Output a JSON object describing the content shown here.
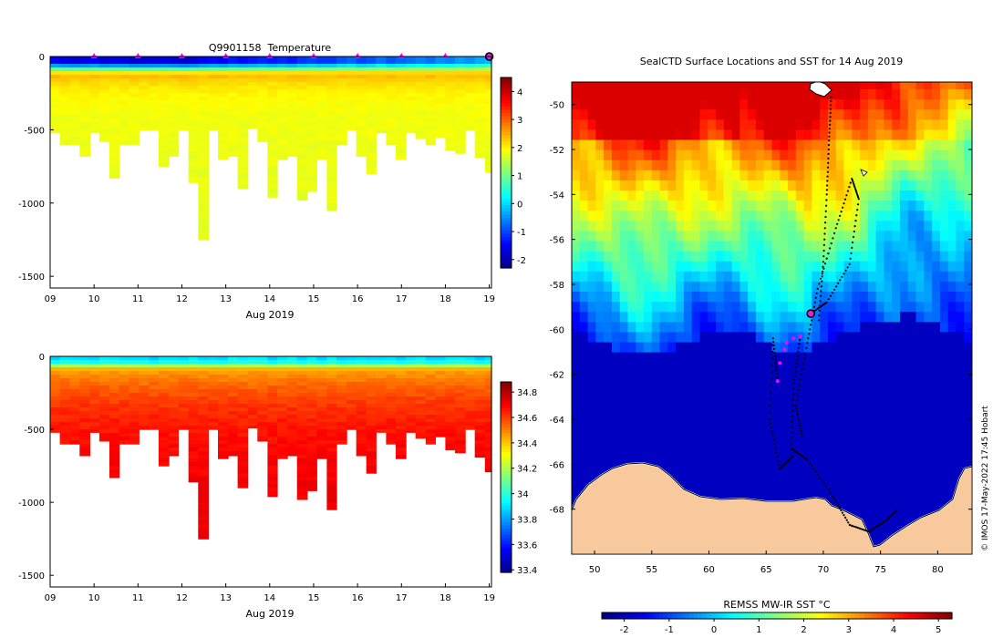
{
  "chart_data": [
    {
      "id": "temperature",
      "type": "heatmap",
      "title": "Q9901158  Temperature",
      "xlabel": "Aug 2019",
      "ylabel": "",
      "xlim": [
        9,
        19.05
      ],
      "ylim": [
        -1580,
        0
      ],
      "xticks": [
        9,
        10,
        11,
        12,
        13,
        14,
        15,
        16,
        17,
        18,
        19
      ],
      "xtick_labels": [
        "09",
        "10",
        "11",
        "12",
        "13",
        "14",
        "15",
        "16",
        "17",
        "18",
        "19"
      ],
      "yticks": [
        0,
        -500,
        -1000,
        -1500
      ],
      "ytick_labels": [
        "0",
        "-500",
        "-1000",
        "-1500"
      ],
      "colorbar": {
        "min": -2.3,
        "max": 4.5,
        "ticks": [
          4,
          3,
          2,
          1,
          0,
          -1,
          -2
        ],
        "tick_labels": [
          "4",
          "3",
          "2",
          "1",
          "0",
          "-1",
          "-2"
        ],
        "colormap": "jet"
      },
      "profile_days": [
        9.0,
        9.22,
        9.45,
        9.67,
        9.9,
        10.12,
        10.35,
        10.57,
        10.8,
        11.02,
        11.25,
        11.47,
        11.7,
        11.92,
        12.15,
        12.37,
        12.6,
        12.82,
        13.05,
        13.27,
        13.5,
        13.72,
        13.95,
        14.17,
        14.4,
        14.62,
        14.85,
        15.07,
        15.3,
        15.52,
        15.75,
        15.97,
        16.2,
        16.42,
        16.65,
        16.87,
        17.1,
        17.32,
        17.55,
        17.77,
        18.0,
        18.22,
        18.45,
        18.67,
        18.9
      ],
      "profile_max_depth": [
        520,
        600,
        600,
        680,
        520,
        580,
        830,
        600,
        600,
        500,
        500,
        750,
        680,
        500,
        860,
        1250,
        500,
        700,
        680,
        900,
        490,
        580,
        960,
        700,
        680,
        980,
        920,
        700,
        1050,
        600,
        500,
        680,
        800,
        520,
        600,
        700,
        520,
        560,
        600,
        550,
        640,
        660,
        500,
        690,
        790
      ],
      "surface_values": [
        -1.5,
        -1.6,
        -1.7,
        -1.6,
        -1.5,
        -1.7,
        -1.6,
        -1.6,
        -1.8,
        -1.7,
        -1.7,
        -1.6,
        -1.7,
        -1.8,
        -1.7,
        -1.5,
        -1.4,
        -1.5,
        -1.3,
        -1.4,
        -1.3,
        -1.2,
        -1.3,
        -1.2,
        -1.3,
        -1.1,
        -1.0,
        -1.1,
        -1.1,
        -0.9,
        -0.8,
        -1.0,
        -0.9,
        -0.7,
        -0.9,
        -0.8,
        -0.7,
        -0.6,
        -0.7,
        -0.5,
        -0.6,
        -0.4,
        -0.5,
        -0.3,
        -0.2
      ],
      "deep_value": 1.9,
      "thermocline_depth": 120,
      "profile_marker_days": [
        10,
        11,
        12,
        13,
        14,
        15,
        16,
        17,
        18
      ],
      "current_day": 19.0
    },
    {
      "id": "salinity",
      "type": "heatmap",
      "title": "",
      "xlabel": "Aug 2019",
      "ylabel": "",
      "xlim": [
        9,
        19.05
      ],
      "ylim": [
        -1580,
        0
      ],
      "xticks": [
        9,
        10,
        11,
        12,
        13,
        14,
        15,
        16,
        17,
        18,
        19
      ],
      "xtick_labels": [
        "09",
        "10",
        "11",
        "12",
        "13",
        "14",
        "15",
        "16",
        "17",
        "18",
        "19"
      ],
      "yticks": [
        0,
        -500,
        -1000,
        -1500
      ],
      "ytick_labels": [
        "0",
        "-500",
        "-1000",
        "-1500"
      ],
      "colorbar": {
        "min": 33.38,
        "max": 34.88,
        "ticks": [
          34.8,
          34.6,
          34.4,
          34.2,
          34,
          33.8,
          33.6,
          33.4
        ],
        "tick_labels": [
          "34.8",
          "34.6",
          "34.4",
          "34.2",
          "34",
          "33.8",
          "33.6",
          "33.4"
        ],
        "colormap": "jet"
      },
      "surface_value": 33.9,
      "deep_value": 34.72,
      "halocline_depth": 90
    },
    {
      "id": "sst_map",
      "type": "heatmap",
      "title": "SealCTD Surface Locations and SST for 14 Aug 2019",
      "xlabel": "",
      "ylabel": "",
      "xlim": [
        48,
        83
      ],
      "ylim": [
        -70,
        -49
      ],
      "xticks": [
        50,
        55,
        60,
        65,
        70,
        75,
        80
      ],
      "xtick_labels": [
        "50",
        "55",
        "60",
        "65",
        "70",
        "75",
        "80"
      ],
      "yticks": [
        -50,
        -52,
        -54,
        -56,
        -58,
        -60,
        -62,
        -64,
        -66,
        -68
      ],
      "ytick_labels": [
        "-50",
        "-52",
        "-54",
        "-56",
        "-58",
        "-60",
        "-62",
        "-64",
        "-66",
        "-68"
      ],
      "colorbar": {
        "label": "REMSS MW-IR SST °C",
        "min": -2.5,
        "max": 5.3,
        "ticks": [
          -2,
          -1,
          0,
          1,
          2,
          3,
          4,
          5
        ],
        "tick_labels": [
          "-2",
          "-1",
          "0",
          "1",
          "2",
          "3",
          "4",
          "5"
        ],
        "colormap": "jet"
      },
      "current_position": {
        "lon": 68.9,
        "lat": -59.3
      },
      "recent_positions": [
        {
          "lon": 66.0,
          "lat": -62.3
        },
        {
          "lon": 66.2,
          "lat": -61.5
        },
        {
          "lon": 66.6,
          "lat": -60.9
        },
        {
          "lon": 66.8,
          "lat": -60.6
        },
        {
          "lon": 67.4,
          "lat": -60.4
        },
        {
          "lon": 68.0,
          "lat": -60.3
        }
      ],
      "track_east": [
        [
          68.9,
          -59.3
        ],
        [
          70.3,
          -58.8
        ],
        [
          72.3,
          -57.1
        ],
        [
          73.1,
          -54.2
        ],
        [
          72.5,
          -53.3
        ],
        [
          71.1,
          -55.5
        ],
        [
          69.5,
          -58.2
        ],
        [
          68.6,
          -60.6
        ],
        [
          67.6,
          -63.4
        ],
        [
          68.2,
          -64.9
        ]
      ],
      "track_north": [
        [
          69.6,
          -59.6
        ],
        [
          70.0,
          -57.0
        ],
        [
          70.3,
          -54.0
        ],
        [
          70.5,
          -51.6
        ],
        [
          70.7,
          -49.5
        ]
      ],
      "track_south": [
        [
          68.0,
          -60.3
        ],
        [
          67.4,
          -62.4
        ],
        [
          67.2,
          -65.3
        ],
        [
          68.6,
          -65.8
        ],
        [
          70.8,
          -67.4
        ],
        [
          72.3,
          -68.7
        ],
        [
          74.0,
          -69.0
        ],
        [
          75.5,
          -68.5
        ],
        [
          76.5,
          -68.0
        ]
      ],
      "track_west": [
        [
          66.0,
          -62.3
        ],
        [
          65.6,
          -60.4
        ],
        [
          65.3,
          -64.0
        ],
        [
          66.2,
          -66.2
        ],
        [
          67.4,
          -65.6
        ]
      ]
    }
  ],
  "footer": {
    "credit": "© IMOS 17-May-2022 17:45 Hobart"
  }
}
